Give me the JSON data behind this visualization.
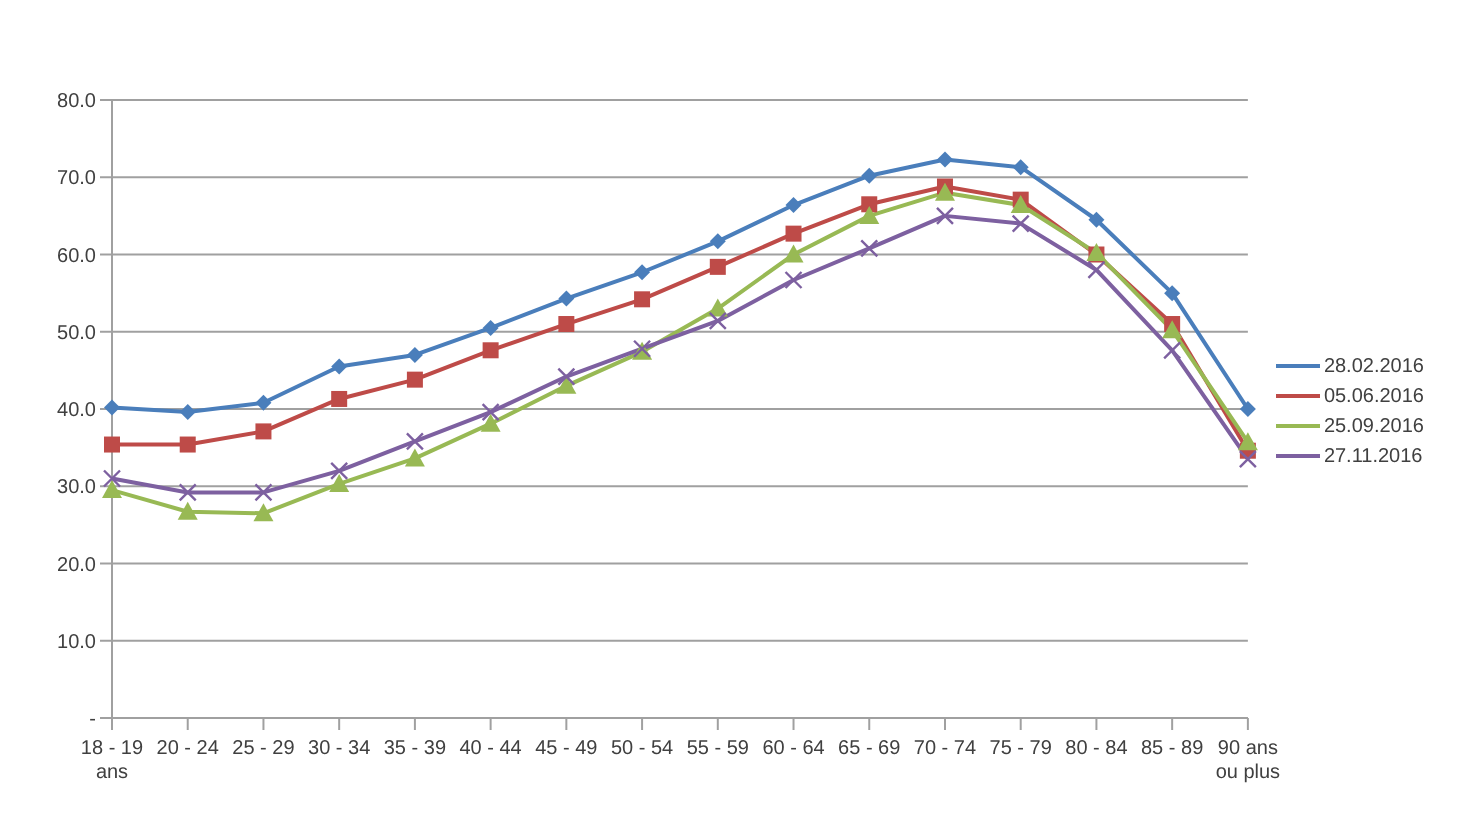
{
  "chart_data": {
    "type": "line",
    "categories": [
      "18 - 19 ans",
      "20 - 24",
      "25 - 29",
      "30 - 34",
      "35 - 39",
      "40 - 44",
      "45 - 49",
      "50 - 54",
      "55 - 59",
      "60 - 64",
      "65 - 69",
      "70 - 74",
      "75 - 79",
      "80 - 84",
      "85 - 89",
      "90 ans ou plus"
    ],
    "series": [
      {
        "name": "28.02.2016",
        "color": "#4a7ebb",
        "marker": "diamond",
        "values": [
          40.2,
          39.6,
          40.8,
          45.5,
          47.0,
          50.5,
          54.3,
          57.7,
          61.7,
          66.4,
          70.2,
          72.3,
          71.3,
          64.5,
          55.0,
          40.0
        ]
      },
      {
        "name": "05.06.2016",
        "color": "#be4b48",
        "marker": "square",
        "values": [
          35.4,
          35.4,
          37.1,
          41.3,
          43.8,
          47.6,
          51.0,
          54.2,
          58.4,
          62.7,
          66.5,
          68.8,
          67.1,
          60.0,
          51.0,
          34.6
        ]
      },
      {
        "name": "25.09.2016",
        "color": "#98b954",
        "marker": "triangle",
        "values": [
          29.5,
          26.7,
          26.5,
          30.3,
          33.6,
          38.1,
          43.0,
          47.4,
          53.0,
          60.0,
          65.0,
          68.0,
          66.4,
          60.2,
          50.2,
          35.7
        ]
      },
      {
        "name": "27.11.2016",
        "color": "#7d60a0",
        "marker": "cross",
        "values": [
          31.0,
          29.2,
          29.2,
          32.0,
          35.8,
          39.6,
          44.2,
          47.8,
          51.4,
          56.7,
          60.8,
          65.0,
          64.0,
          58.0,
          47.6,
          33.5
        ]
      }
    ],
    "ylim": [
      0,
      80
    ],
    "yticks": [
      {
        "value": 0,
        "label": "-"
      },
      {
        "value": 10,
        "label": "10.0"
      },
      {
        "value": 20,
        "label": "20.0"
      },
      {
        "value": 30,
        "label": "30.0"
      },
      {
        "value": 40,
        "label": "40.0"
      },
      {
        "value": 50,
        "label": "50.0"
      },
      {
        "value": 60,
        "label": "60.0"
      },
      {
        "value": 70,
        "label": "70.0"
      },
      {
        "value": 80,
        "label": "80.0"
      }
    ],
    "grid": "y",
    "legend": "right",
    "line_style": "solid"
  }
}
